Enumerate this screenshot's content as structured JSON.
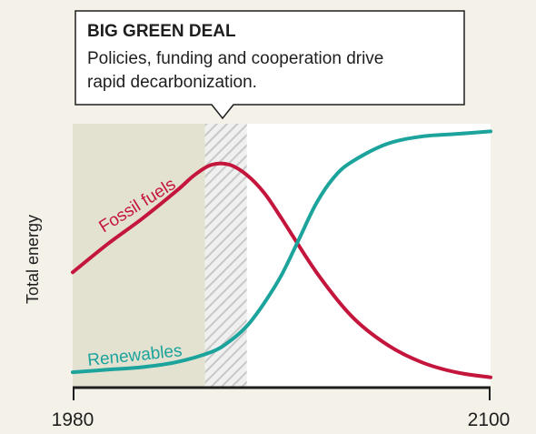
{
  "chart_data": {
    "type": "line",
    "ylabel": "Total energy",
    "xlim": [
      1980,
      2100
    ],
    "x_ticks": [
      "1980",
      "2100"
    ],
    "shaded_regions": [
      {
        "from": 1980,
        "to": 2018,
        "style": "solid",
        "color": "#e3e2d1"
      },
      {
        "from": 2018,
        "to": 2030,
        "style": "hatched",
        "color": "#c8c8c8"
      }
    ],
    "annotation": {
      "title": "BIG GREEN DEAL",
      "lines": [
        "Policies, funding and cooperation drive",
        "rapid decarbonization."
      ],
      "points_to": 2024
    },
    "series": [
      {
        "name": "Fossil fuels",
        "color": "#c4163c",
        "x": [
          1980,
          1990,
          2000,
          2010,
          2015,
          2020,
          2025,
          2030,
          2035,
          2040,
          2050,
          2060,
          2070,
          2080,
          2090,
          2100
        ],
        "y": [
          0.45,
          0.56,
          0.66,
          0.77,
          0.83,
          0.87,
          0.87,
          0.83,
          0.76,
          0.66,
          0.45,
          0.28,
          0.17,
          0.1,
          0.06,
          0.04
        ]
      },
      {
        "name": "Renewables",
        "color": "#1ba39c",
        "x": [
          1980,
          1990,
          2000,
          2010,
          2020,
          2025,
          2030,
          2035,
          2040,
          2045,
          2050,
          2055,
          2060,
          2070,
          2080,
          2090,
          2100
        ],
        "y": [
          0.06,
          0.07,
          0.08,
          0.1,
          0.14,
          0.18,
          0.24,
          0.33,
          0.44,
          0.58,
          0.72,
          0.82,
          0.88,
          0.95,
          0.98,
          0.99,
          1.0
        ]
      }
    ],
    "ylim": [
      0,
      1.03
    ]
  }
}
